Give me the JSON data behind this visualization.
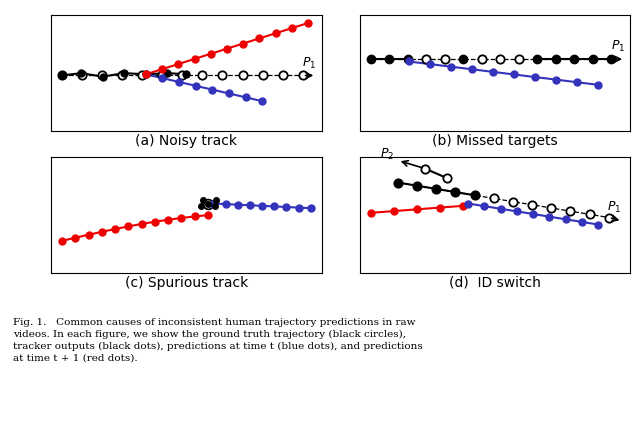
{
  "fig_bg": "#ffffff",
  "subplot_bg": "#ffffff",
  "caption": "Fig. 1.   Common causes of inconsistent human trajectory predictions in raw\nvideos. In each figure, we show the ground truth trajectory (black circles),\ntracker outputs (black dots), predictions at time t (blue dots), and predictions\nat time t + 1 (red dots).",
  "caption_fontsize": 7.5,
  "titles": [
    "(a) Noisy track",
    "(b) Missed targets",
    "(c) Spurious track",
    "(d)  ID switch"
  ],
  "title_fontsize": 10,
  "colors": {
    "red": "#ee0000",
    "blue": "#3333bb",
    "black": "#000000",
    "white": "#ffffff"
  },
  "marker_size_large": 6,
  "marker_size_small": 4,
  "line_width": 1.5
}
